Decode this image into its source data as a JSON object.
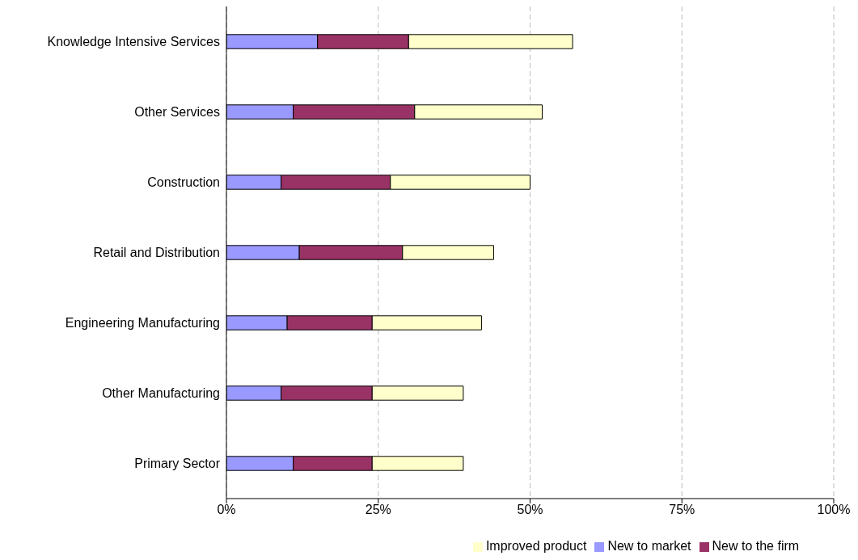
{
  "chart_data": {
    "type": "bar",
    "orientation": "horizontal",
    "stacked": true,
    "categories": [
      "Knowledge Intensive Services",
      "Other Services",
      "Construction",
      "Retail and Distribution",
      "Engineering Manufacturing",
      "Other Manufacturing",
      "Primary Sector"
    ],
    "series": [
      {
        "name": "New to market",
        "color": "#9999ff",
        "values": [
          15,
          11,
          9,
          12,
          10,
          9,
          11
        ]
      },
      {
        "name": "New to the firm",
        "color": "#993366",
        "values": [
          15,
          20,
          18,
          17,
          14,
          15,
          13
        ]
      },
      {
        "name": "Improved product",
        "color": "#ffffcc",
        "values": [
          27,
          21,
          23,
          15,
          18,
          15,
          15
        ]
      }
    ],
    "xlim": [
      0,
      100
    ],
    "xticks": [
      {
        "value": 0,
        "label": "0%"
      },
      {
        "value": 25,
        "label": "25%"
      },
      {
        "value": 50,
        "label": "50%"
      },
      {
        "value": 75,
        "label": "75%"
      },
      {
        "value": 100,
        "label": "100%"
      }
    ],
    "grid": "x",
    "legend": "bottom"
  }
}
